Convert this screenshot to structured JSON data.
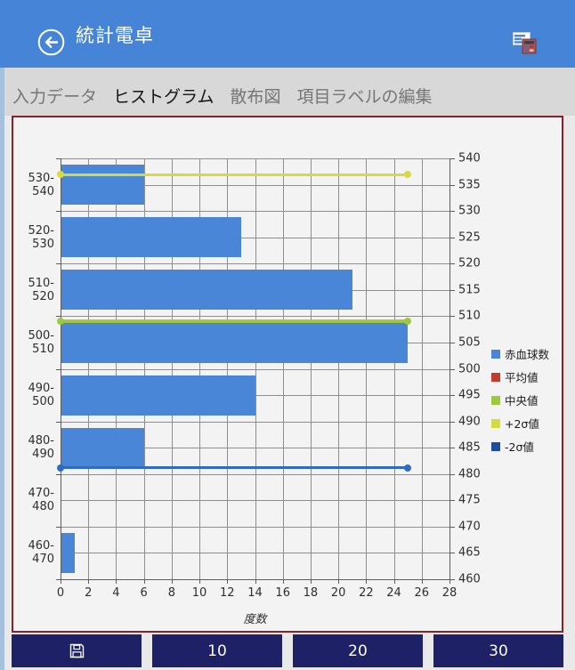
{
  "header": {
    "title": "統計電卓"
  },
  "tabs": [
    {
      "label": "入力データ",
      "selected": false
    },
    {
      "label": "ヒストグラム",
      "selected": true
    },
    {
      "label": "散布図",
      "selected": false
    },
    {
      "label": "項目ラベルの編集",
      "selected": false
    }
  ],
  "chart_data": {
    "type": "bar",
    "orientation": "horizontal",
    "title": "",
    "xlabel": "度数",
    "categories": [
      "530-540",
      "520-530",
      "510-520",
      "500-510",
      "490-500",
      "480-490",
      "470-480",
      "460-470"
    ],
    "series": [
      {
        "name": "赤血球数",
        "values": [
          6,
          13,
          21,
          25,
          14,
          6,
          0,
          1
        ],
        "color": "#4A86D8"
      }
    ],
    "x_ticks": [
      0,
      2,
      4,
      6,
      8,
      10,
      12,
      14,
      16,
      18,
      20,
      22,
      24,
      26,
      28
    ],
    "x_range": [
      0,
      28
    ],
    "value_axis_right": {
      "min": 460,
      "max": 540,
      "step": 5
    },
    "stat_lines": [
      {
        "name": "平均値",
        "value": 509.0,
        "extent_x": 25,
        "color": "#C33B2C",
        "overlaps_median": true
      },
      {
        "name": "中央値",
        "value": 509.0,
        "extent_x": 25,
        "color": "#9DC93D"
      },
      {
        "name": "+2σ値",
        "value": 536.9,
        "extent_x": 25,
        "color": "#D6DA3E"
      },
      {
        "name": "-2σ値",
        "value": 481.2,
        "extent_x": 25,
        "color": "#2D6BC5"
      }
    ],
    "legend": [
      {
        "label": "赤血球数",
        "color": "#4A86D8"
      },
      {
        "label": "平均値",
        "color": "#C33B2C"
      },
      {
        "label": "中央値",
        "color": "#9DC93D"
      },
      {
        "label": "+2σ値",
        "color": "#D6DA3E"
      },
      {
        "label": "-2σ値",
        "color": "#1D4CA0"
      }
    ],
    "grid": true,
    "legend_position": "right"
  },
  "buttons": [
    {
      "icon": "save-icon",
      "label": ""
    },
    {
      "label": "10"
    },
    {
      "label": "20"
    },
    {
      "label": "30"
    }
  ]
}
